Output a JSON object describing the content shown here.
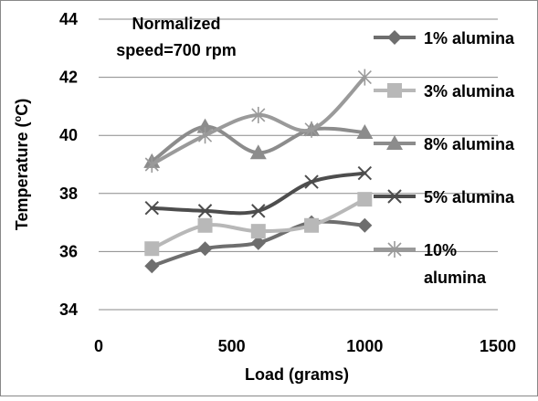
{
  "chart_data": {
    "type": "line",
    "title": "",
    "annotation_lines": [
      "Normalized",
      "speed=700 rpm"
    ],
    "xlabel": "Load (grams)",
    "ylabel": "Temperature (",
    "ylabel_sup": "o",
    "ylabel_unit": "C)",
    "xlim": [
      0,
      1500
    ],
    "ylim": [
      34,
      44
    ],
    "x_ticks": [
      0,
      500,
      1000,
      1500
    ],
    "y_ticks": [
      34,
      36,
      38,
      40,
      42,
      44
    ],
    "grid": "horizontal",
    "legend_position": "right",
    "series": [
      {
        "name": "1% alumina",
        "legend_lines": [
          "1% alumina"
        ],
        "color": "#6e6e6e",
        "marker": "diamond",
        "x": [
          200,
          400,
          600,
          800,
          1000
        ],
        "y": [
          35.5,
          36.1,
          36.3,
          37.0,
          36.9
        ]
      },
      {
        "name": "3% alumina",
        "legend_lines": [
          "3% alumina"
        ],
        "color": "#b8b8b8",
        "marker": "square",
        "x": [
          200,
          400,
          600,
          800,
          1000
        ],
        "y": [
          36.1,
          36.9,
          36.7,
          36.9,
          37.8
        ]
      },
      {
        "name": "8% alumina",
        "legend_lines": [
          "8% alumina"
        ],
        "color": "#8c8c8c",
        "marker": "triangle",
        "x": [
          200,
          400,
          600,
          800,
          1000
        ],
        "y": [
          39.1,
          40.3,
          39.4,
          40.2,
          40.1
        ]
      },
      {
        "name": "5% alumina",
        "legend_lines": [
          "5% alumina"
        ],
        "color": "#4d4d4d",
        "marker": "x",
        "x": [
          200,
          400,
          600,
          800,
          1000
        ],
        "y": [
          37.5,
          37.4,
          37.4,
          38.4,
          38.7
        ]
      },
      {
        "name": "10% alumina",
        "legend_lines": [
          "10%",
          "alumina"
        ],
        "color": "#9a9a9a",
        "marker": "star",
        "x": [
          200,
          400,
          600,
          800,
          1000
        ],
        "y": [
          39.0,
          40.0,
          40.7,
          40.2,
          42.0
        ]
      }
    ]
  }
}
